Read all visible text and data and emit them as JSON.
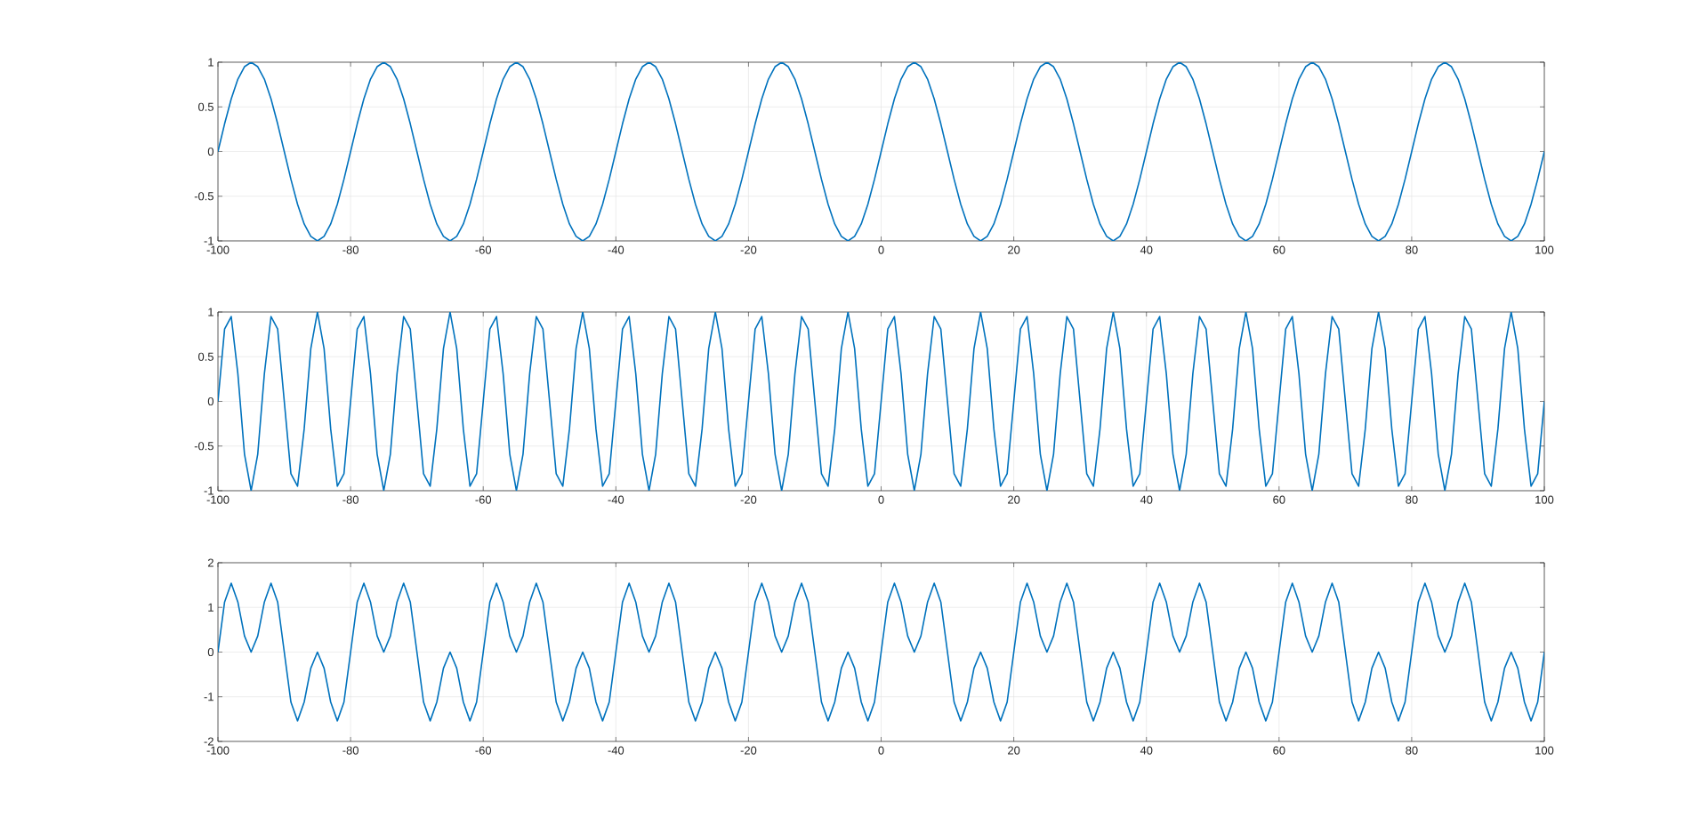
{
  "chart_data": [
    {
      "type": "line",
      "color": "#0072bd",
      "xlim": [
        -100,
        100
      ],
      "ylim": [
        -1,
        1
      ],
      "grid": true,
      "xticks": [
        -100,
        -80,
        -60,
        -40,
        -20,
        0,
        20,
        40,
        60,
        80,
        100
      ],
      "yticks": [
        -1,
        -0.5,
        0,
        0.5,
        1
      ],
      "x": [
        -100,
        -99,
        -98,
        -97,
        -96,
        -95,
        -94,
        -93,
        -92,
        -91,
        -90,
        -89,
        -88,
        -87,
        -86,
        -85,
        -84,
        -83,
        -82,
        -81,
        -80,
        -79,
        -78,
        -77,
        -76,
        -75,
        -74,
        -73,
        -72,
        -71,
        -70,
        -69,
        -68,
        -67,
        -66,
        -65,
        -64,
        -63,
        -62,
        -61,
        -60,
        -59,
        -58,
        -57,
        -56,
        -55,
        -54,
        -53,
        -52,
        -51,
        -50,
        -49,
        -48,
        -47,
        -46,
        -45,
        -44,
        -43,
        -42,
        -41,
        -40,
        -39,
        -38,
        -37,
        -36,
        -35,
        -34,
        -33,
        -32,
        -31,
        -30,
        -29,
        -28,
        -27,
        -26,
        -25,
        -24,
        -23,
        -22,
        -21,
        -20,
        -19,
        -18,
        -17,
        -16,
        -15,
        -14,
        -13,
        -12,
        -11,
        -10,
        -9,
        -8,
        -7,
        -6,
        -5,
        -4,
        -3,
        -2,
        -1,
        0,
        1,
        2,
        3,
        4,
        5,
        6,
        7,
        8,
        9,
        10,
        11,
        12,
        13,
        14,
        15,
        16,
        17,
        18,
        19,
        20,
        21,
        22,
        23,
        24,
        25,
        26,
        27,
        28,
        29,
        30,
        31,
        32,
        33,
        34,
        35,
        36,
        37,
        38,
        39,
        40,
        41,
        42,
        43,
        44,
        45,
        46,
        47,
        48,
        49,
        50,
        51,
        52,
        53,
        54,
        55,
        56,
        57,
        58,
        59,
        60,
        61,
        62,
        63,
        64,
        65,
        66,
        67,
        68,
        69,
        70,
        71,
        72,
        73,
        74,
        75,
        76,
        77,
        78,
        79,
        80,
        81,
        82,
        83,
        84,
        85,
        86,
        87,
        88,
        89,
        90,
        91,
        92,
        93,
        94,
        95,
        96,
        97,
        98,
        99,
        100
      ],
      "values": [
        0,
        0.31,
        0.59,
        0.81,
        0.95,
        1,
        0.95,
        0.81,
        0.59,
        0.31,
        0,
        -0.31,
        -0.59,
        -0.81,
        -0.95,
        -1,
        -0.95,
        -0.81,
        -0.59,
        -0.31,
        0,
        0.31,
        0.59,
        0.81,
        0.95,
        1,
        0.95,
        0.81,
        0.59,
        0.31,
        0,
        -0.31,
        -0.59,
        -0.81,
        -0.95,
        -1,
        -0.95,
        -0.81,
        -0.59,
        -0.31,
        0,
        0.31,
        0.59,
        0.81,
        0.95,
        1,
        0.95,
        0.81,
        0.59,
        0.31,
        0,
        -0.31,
        -0.59,
        -0.81,
        -0.95,
        -1,
        -0.95,
        -0.81,
        -0.59,
        -0.31,
        0,
        0.31,
        0.59,
        0.81,
        0.95,
        1,
        0.95,
        0.81,
        0.59,
        0.31,
        0,
        -0.31,
        -0.59,
        -0.81,
        -0.95,
        -1,
        -0.95,
        -0.81,
        -0.59,
        -0.31,
        0,
        0.31,
        0.59,
        0.81,
        0.95,
        1,
        0.95,
        0.81,
        0.59,
        0.31,
        0,
        -0.31,
        -0.59,
        -0.81,
        -0.95,
        -1,
        -0.95,
        -0.81,
        -0.59,
        -0.31,
        0,
        0.31,
        0.59,
        0.81,
        0.95,
        1,
        0.95,
        0.81,
        0.59,
        0.31,
        0,
        -0.31,
        -0.59,
        -0.81,
        -0.95,
        -1,
        -0.95,
        -0.81,
        -0.59,
        -0.31,
        0,
        0.31,
        0.59,
        0.81,
        0.95,
        1,
        0.95,
        0.81,
        0.59,
        0.31,
        0,
        -0.31,
        -0.59,
        -0.81,
        -0.95,
        -1,
        -0.95,
        -0.81,
        -0.59,
        -0.31,
        0,
        0.31,
        0.59,
        0.81,
        0.95,
        1,
        0.95,
        0.81,
        0.59,
        0.31,
        0,
        -0.31,
        -0.59,
        -0.81,
        -0.95,
        -1,
        -0.95,
        -0.81,
        -0.59,
        -0.31,
        0,
        0.31,
        0.59,
        0.81,
        0.95,
        1,
        0.95,
        0.81,
        0.59,
        0.31,
        0,
        -0.31,
        -0.59,
        -0.81,
        -0.95,
        -1,
        -0.95,
        -0.81,
        -0.59,
        -0.31,
        0,
        0.31,
        0.59,
        0.81,
        0.95,
        1,
        0.95,
        0.81,
        0.59,
        0.31,
        0,
        -0.31,
        -0.59,
        -0.81,
        -0.95,
        -1,
        -0.95,
        -0.81,
        -0.59,
        -0.31,
        0
      ]
    },
    {
      "type": "line",
      "color": "#0072bd",
      "xlim": [
        -100,
        100
      ],
      "ylim": [
        -1,
        1
      ],
      "grid": true,
      "xticks": [
        -100,
        -80,
        -60,
        -40,
        -20,
        0,
        20,
        40,
        60,
        80,
        100
      ],
      "yticks": [
        -1,
        -0.5,
        0,
        0.5,
        1
      ],
      "x": [
        -100,
        -99,
        -98,
        -97,
        -96,
        -95,
        -94,
        -93,
        -92,
        -91,
        -90,
        -89,
        -88,
        -87,
        -86,
        -85,
        -84,
        -83,
        -82,
        -81,
        -80,
        -79,
        -78,
        -77,
        -76,
        -75,
        -74,
        -73,
        -72,
        -71,
        -70,
        -69,
        -68,
        -67,
        -66,
        -65,
        -64,
        -63,
        -62,
        -61,
        -60,
        -59,
        -58,
        -57,
        -56,
        -55,
        -54,
        -53,
        -52,
        -51,
        -50,
        -49,
        -48,
        -47,
        -46,
        -45,
        -44,
        -43,
        -42,
        -41,
        -40,
        -39,
        -38,
        -37,
        -36,
        -35,
        -34,
        -33,
        -32,
        -31,
        -30,
        -29,
        -28,
        -27,
        -26,
        -25,
        -24,
        -23,
        -22,
        -21,
        -20,
        -19,
        -18,
        -17,
        -16,
        -15,
        -14,
        -13,
        -12,
        -11,
        -10,
        -9,
        -8,
        -7,
        -6,
        -5,
        -4,
        -3,
        -2,
        -1,
        0,
        1,
        2,
        3,
        4,
        5,
        6,
        7,
        8,
        9,
        10,
        11,
        12,
        13,
        14,
        15,
        16,
        17,
        18,
        19,
        20,
        21,
        22,
        23,
        24,
        25,
        26,
        27,
        28,
        29,
        30,
        31,
        32,
        33,
        34,
        35,
        36,
        37,
        38,
        39,
        40,
        41,
        42,
        43,
        44,
        45,
        46,
        47,
        48,
        49,
        50,
        51,
        52,
        53,
        54,
        55,
        56,
        57,
        58,
        59,
        60,
        61,
        62,
        63,
        64,
        65,
        66,
        67,
        68,
        69,
        70,
        71,
        72,
        73,
        74,
        75,
        76,
        77,
        78,
        79,
        80,
        81,
        82,
        83,
        84,
        85,
        86,
        87,
        88,
        89,
        90,
        91,
        92,
        93,
        94,
        95,
        96,
        97,
        98,
        99,
        100
      ],
      "values": [
        0,
        0.81,
        0.95,
        0.31,
        -0.59,
        -1,
        -0.59,
        0.31,
        0.95,
        0.81,
        0,
        -0.81,
        -0.95,
        -0.31,
        0.59,
        1,
        0.59,
        -0.31,
        -0.95,
        -0.81,
        0,
        0.81,
        0.95,
        0.31,
        -0.59,
        -1,
        -0.59,
        0.31,
        0.95,
        0.81,
        0,
        -0.81,
        -0.95,
        -0.31,
        0.59,
        1,
        0.59,
        -0.31,
        -0.95,
        -0.81,
        0,
        0.81,
        0.95,
        0.31,
        -0.59,
        -1,
        -0.59,
        0.31,
        0.95,
        0.81,
        0,
        -0.81,
        -0.95,
        -0.31,
        0.59,
        1,
        0.59,
        -0.31,
        -0.95,
        -0.81,
        0,
        0.81,
        0.95,
        0.31,
        -0.59,
        -1,
        -0.59,
        0.31,
        0.95,
        0.81,
        0,
        -0.81,
        -0.95,
        -0.31,
        0.59,
        1,
        0.59,
        -0.31,
        -0.95,
        -0.81,
        0,
        0.81,
        0.95,
        0.31,
        -0.59,
        -1,
        -0.59,
        0.31,
        0.95,
        0.81,
        0,
        -0.81,
        -0.95,
        -0.31,
        0.59,
        1,
        0.59,
        -0.31,
        -0.95,
        -0.81,
        0,
        0.81,
        0.95,
        0.31,
        -0.59,
        -1,
        -0.59,
        0.31,
        0.95,
        0.81,
        0,
        -0.81,
        -0.95,
        -0.31,
        0.59,
        1,
        0.59,
        -0.31,
        -0.95,
        -0.81,
        0,
        0.81,
        0.95,
        0.31,
        -0.59,
        -1,
        -0.59,
        0.31,
        0.95,
        0.81,
        0,
        -0.81,
        -0.95,
        -0.31,
        0.59,
        1,
        0.59,
        -0.31,
        -0.95,
        -0.81,
        0,
        0.81,
        0.95,
        0.31,
        -0.59,
        -1,
        -0.59,
        0.31,
        0.95,
        0.81,
        0,
        -0.81,
        -0.95,
        -0.31,
        0.59,
        1,
        0.59,
        -0.31,
        -0.95,
        -0.81,
        0,
        0.81,
        0.95,
        0.31,
        -0.59,
        -1,
        -0.59,
        0.31,
        0.95,
        0.81,
        0,
        -0.81,
        -0.95,
        -0.31,
        0.59,
        1,
        0.59,
        -0.31,
        -0.95,
        -0.81,
        0,
        0.81,
        0.95,
        0.31,
        -0.59,
        -1,
        -0.59,
        0.31,
        0.95,
        0.81,
        0,
        -0.81,
        -0.95,
        -0.31,
        0.59,
        1,
        0.59,
        -0.31,
        -0.95,
        -0.81,
        0
      ]
    },
    {
      "type": "line",
      "color": "#0072bd",
      "xlim": [
        -100,
        100
      ],
      "ylim": [
        -2,
        2
      ],
      "grid": true,
      "xticks": [
        -100,
        -80,
        -60,
        -40,
        -20,
        0,
        20,
        40,
        60,
        80,
        100
      ],
      "yticks": [
        -2,
        -1,
        0,
        1,
        2
      ],
      "x": [
        -100,
        -99,
        -98,
        -97,
        -96,
        -95,
        -94,
        -93,
        -92,
        -91,
        -90,
        -89,
        -88,
        -87,
        -86,
        -85,
        -84,
        -83,
        -82,
        -81,
        -80,
        -79,
        -78,
        -77,
        -76,
        -75,
        -74,
        -73,
        -72,
        -71,
        -70,
        -69,
        -68,
        -67,
        -66,
        -65,
        -64,
        -63,
        -62,
        -61,
        -60,
        -59,
        -58,
        -57,
        -56,
        -55,
        -54,
        -53,
        -52,
        -51,
        -50,
        -49,
        -48,
        -47,
        -46,
        -45,
        -44,
        -43,
        -42,
        -41,
        -40,
        -39,
        -38,
        -37,
        -36,
        -35,
        -34,
        -33,
        -32,
        -31,
        -30,
        -29,
        -28,
        -27,
        -26,
        -25,
        -24,
        -23,
        -22,
        -21,
        -20,
        -19,
        -18,
        -17,
        -16,
        -15,
        -14,
        -13,
        -12,
        -11,
        -10,
        -9,
        -8,
        -7,
        -6,
        -5,
        -4,
        -3,
        -2,
        -1,
        0,
        1,
        2,
        3,
        4,
        5,
        6,
        7,
        8,
        9,
        10,
        11,
        12,
        13,
        14,
        15,
        16,
        17,
        18,
        19,
        20,
        21,
        22,
        23,
        24,
        25,
        26,
        27,
        28,
        29,
        30,
        31,
        32,
        33,
        34,
        35,
        36,
        37,
        38,
        39,
        40,
        41,
        42,
        43,
        44,
        45,
        46,
        47,
        48,
        49,
        50,
        51,
        52,
        53,
        54,
        55,
        56,
        57,
        58,
        59,
        60,
        61,
        62,
        63,
        64,
        65,
        66,
        67,
        68,
        69,
        70,
        71,
        72,
        73,
        74,
        75,
        76,
        77,
        78,
        79,
        80,
        81,
        82,
        83,
        84,
        85,
        86,
        87,
        88,
        89,
        90,
        91,
        92,
        93,
        94,
        95,
        96,
        97,
        98,
        99,
        100
      ],
      "values": [
        0,
        1.12,
        1.54,
        1.12,
        0.36,
        0,
        0.36,
        1.12,
        1.54,
        1.12,
        0,
        -1.12,
        -1.54,
        -1.12,
        -0.36,
        0,
        -0.36,
        -1.12,
        -1.54,
        -1.12,
        0,
        1.12,
        1.54,
        1.12,
        0.36,
        0,
        0.36,
        1.12,
        1.54,
        1.12,
        0,
        -1.12,
        -1.54,
        -1.12,
        -0.36,
        0,
        -0.36,
        -1.12,
        -1.54,
        -1.12,
        0,
        1.12,
        1.54,
        1.12,
        0.36,
        0,
        0.36,
        1.12,
        1.54,
        1.12,
        0,
        -1.12,
        -1.54,
        -1.12,
        -0.36,
        0,
        -0.36,
        -1.12,
        -1.54,
        -1.12,
        0,
        1.12,
        1.54,
        1.12,
        0.36,
        0,
        0.36,
        1.12,
        1.54,
        1.12,
        0,
        -1.12,
        -1.54,
        -1.12,
        -0.36,
        0,
        -0.36,
        -1.12,
        -1.54,
        -1.12,
        0,
        1.12,
        1.54,
        1.12,
        0.36,
        0,
        0.36,
        1.12,
        1.54,
        1.12,
        0,
        -1.12,
        -1.54,
        -1.12,
        -0.36,
        0,
        -0.36,
        -1.12,
        -1.54,
        -1.12,
        0,
        1.12,
        1.54,
        1.12,
        0.36,
        0,
        0.36,
        1.12,
        1.54,
        1.12,
        0,
        -1.12,
        -1.54,
        -1.12,
        -0.36,
        0,
        -0.36,
        -1.12,
        -1.54,
        -1.12,
        0,
        1.12,
        1.54,
        1.12,
        0.36,
        0,
        0.36,
        1.12,
        1.54,
        1.12,
        0,
        -1.12,
        -1.54,
        -1.12,
        -0.36,
        0,
        -0.36,
        -1.12,
        -1.54,
        -1.12,
        0,
        1.12,
        1.54,
        1.12,
        0.36,
        0,
        0.36,
        1.12,
        1.54,
        1.12,
        0,
        -1.12,
        -1.54,
        -1.12,
        -0.36,
        0,
        -0.36,
        -1.12,
        -1.54,
        -1.12,
        0,
        1.12,
        1.54,
        1.12,
        0.36,
        0,
        0.36,
        1.12,
        1.54,
        1.12,
        0,
        -1.12,
        -1.54,
        -1.12,
        -0.36,
        0,
        -0.36,
        -1.12,
        -1.54,
        -1.12,
        0,
        1.12,
        1.54,
        1.12,
        0.36,
        0,
        0.36,
        1.12,
        1.54,
        1.12,
        0,
        -1.12,
        -1.54,
        -1.12,
        -0.36,
        0,
        -0.36,
        -1.12,
        -1.54,
        -1.12,
        0
      ]
    }
  ]
}
